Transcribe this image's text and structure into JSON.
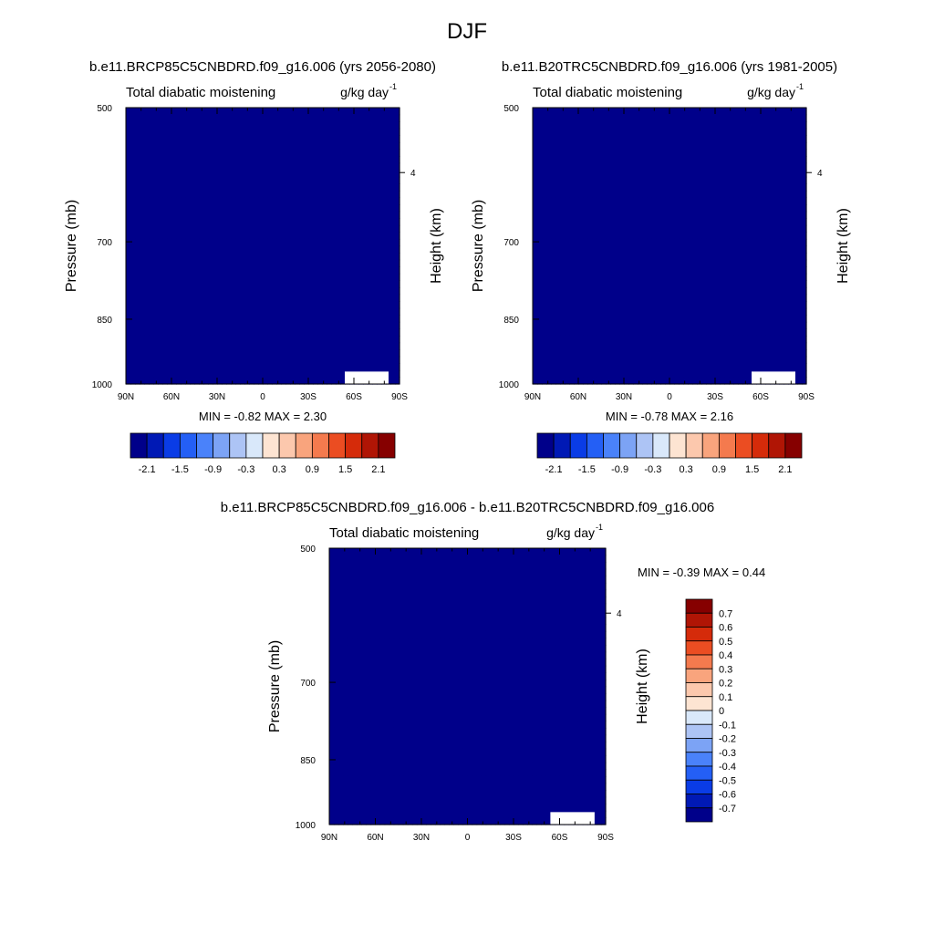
{
  "figure": {
    "title": "DJF",
    "diff_title": "b.e11.BRCP85C5CNBDRD.f09_g16.006 - b.e11.B20TRC5CNBDRD.f09_g16.006"
  },
  "chart_data": [
    {
      "type": "heatmap",
      "title": "b.e11.BRCP85C5CNBDRD.f09_g16.006 (yrs 2056-2080)",
      "subtitle_left": "Total diabatic moistening",
      "units": "g/kg day",
      "units_exp": "-1",
      "ylabel": "Pressure (mb)",
      "ylabel_right": "Height (km)",
      "x_ticks": [
        "90N",
        "60N",
        "30N",
        "0",
        "30S",
        "60S",
        "90S"
      ],
      "y_ticks": [
        "500",
        "700",
        "850",
        "1000"
      ],
      "right_ticks": [
        "4"
      ],
      "min_max": "MIN =  -0.82  MAX =   2.30",
      "min": -0.82,
      "max": 2.3,
      "colorbar_labels": [
        "-2.1",
        "-1.5",
        "-0.9",
        "-0.3",
        "0.3",
        "0.9",
        "1.5",
        "2.1"
      ],
      "levels": [
        -2.1,
        -1.8,
        -1.5,
        -1.2,
        -0.9,
        -0.6,
        -0.3,
        0,
        0.3,
        0.6,
        0.9,
        1.2,
        1.5,
        1.8,
        2.1
      ]
    },
    {
      "type": "heatmap",
      "title": "b.e11.B20TRC5CNBDRD.f09_g16.006 (yrs 1981-2005)",
      "subtitle_left": "Total diabatic moistening",
      "units": "g/kg day",
      "units_exp": "-1",
      "ylabel": "Pressure (mb)",
      "ylabel_right": "Height (km)",
      "x_ticks": [
        "90N",
        "60N",
        "30N",
        "0",
        "30S",
        "60S",
        "90S"
      ],
      "y_ticks": [
        "500",
        "700",
        "850",
        "1000"
      ],
      "right_ticks": [
        "4"
      ],
      "min_max": "MIN =  -0.78  MAX =   2.16",
      "min": -0.78,
      "max": 2.16,
      "colorbar_labels": [
        "-2.1",
        "-1.5",
        "-0.9",
        "-0.3",
        "0.3",
        "0.9",
        "1.5",
        "2.1"
      ],
      "levels": [
        -2.1,
        -1.8,
        -1.5,
        -1.2,
        -0.9,
        -0.6,
        -0.3,
        0,
        0.3,
        0.6,
        0.9,
        1.2,
        1.5,
        1.8,
        2.1
      ]
    },
    {
      "type": "heatmap",
      "title": "b.e11.BRCP85C5CNBDRD.f09_g16.006 - b.e11.B20TRC5CNBDRD.f09_g16.006",
      "subtitle_left": "Total diabatic moistening",
      "units": "g/kg day",
      "units_exp": "-1",
      "ylabel": "Pressure (mb)",
      "ylabel_right": "Height (km)",
      "x_ticks": [
        "90N",
        "60N",
        "30N",
        "0",
        "30S",
        "60S",
        "90S"
      ],
      "y_ticks": [
        "500",
        "700",
        "850",
        "1000"
      ],
      "right_ticks": [
        "4"
      ],
      "min_max": "MIN =  -0.39  MAX =   0.44",
      "min": -0.39,
      "max": 0.44,
      "colorbar_labels": [
        "0.7",
        "0.6",
        "0.5",
        "0.4",
        "0.3",
        "0.2",
        "0.1",
        "0",
        "-0.1",
        "-0.2",
        "-0.3",
        "-0.4",
        "-0.5",
        "-0.6",
        "-0.7"
      ],
      "levels": [
        -0.7,
        -0.6,
        -0.5,
        -0.4,
        -0.3,
        -0.2,
        -0.1,
        0,
        0.1,
        0.2,
        0.3,
        0.4,
        0.5,
        0.6,
        0.7
      ]
    }
  ],
  "palette": [
    "#00008a",
    "#0019b5",
    "#0a3ce6",
    "#245ff5",
    "#4a82fa",
    "#7ca3f5",
    "#adc4f5",
    "#d9e8fa",
    "#fde4d2",
    "#fcc8ad",
    "#f9a47d",
    "#f47a4e",
    "#eb4d22",
    "#d52b0a",
    "#b01505",
    "#860000"
  ]
}
